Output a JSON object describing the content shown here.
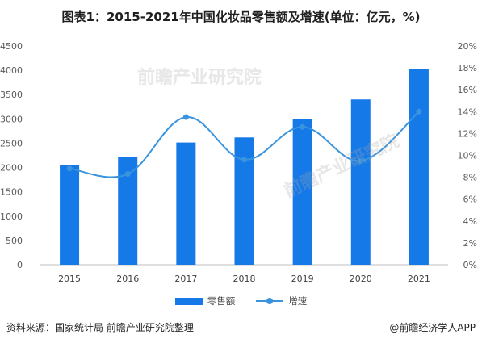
{
  "title": "图表1：2015-2021年中国化妆品零售额及增速(单位：亿元，%)",
  "source": "资料来源：国家统计局 前瞻产业研究院整理",
  "brand": "@前瞻经济学人APP",
  "watermark": "前瞻产业研究院",
  "colors": {
    "bar": "#1679E8",
    "line": "#3A94DD"
  },
  "chart_data": {
    "type": "bar",
    "categories": [
      "2015",
      "2016",
      "2017",
      "2018",
      "2019",
      "2020",
      "2021"
    ],
    "series": [
      {
        "name": "零售额",
        "type": "bar",
        "axis": "left",
        "values": [
          2049,
          2222,
          2514,
          2619,
          2992,
          3400,
          4026
        ]
      },
      {
        "name": "增速",
        "type": "line",
        "axis": "right",
        "values": [
          8.8,
          8.3,
          13.5,
          9.6,
          12.6,
          9.5,
          14.0
        ]
      }
    ],
    "y_left": {
      "min": 0,
      "max": 4500,
      "step": 500,
      "ticks": [
        "0",
        "500",
        "1000",
        "1500",
        "2000",
        "2500",
        "3000",
        "3500",
        "4000",
        "4500"
      ]
    },
    "y_right": {
      "min": 0,
      "max": 20,
      "step": 2,
      "ticks": [
        "0%",
        "2%",
        "4%",
        "6%",
        "8%",
        "10%",
        "12%",
        "14%",
        "16%",
        "18%",
        "20%"
      ]
    },
    "legend_position": "bottom",
    "grid": false
  }
}
